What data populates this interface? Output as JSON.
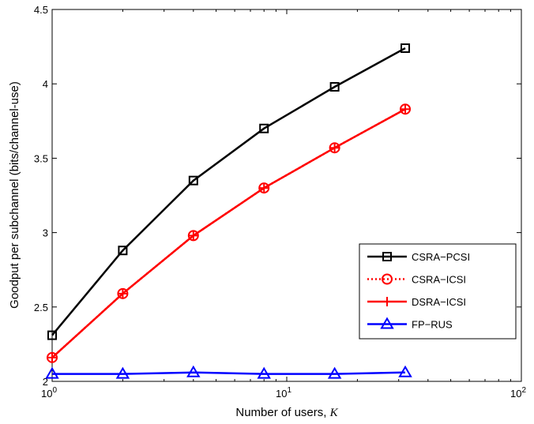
{
  "chart_data": {
    "type": "line",
    "xscale": "log",
    "xlim": [
      1,
      100
    ],
    "ylim": [
      2,
      4.5
    ],
    "xlabel": "Number of users, ",
    "xlabel_var": "K",
    "ylabel": "Goodput per subchannel (bits/channel-use)",
    "x_ticks": [
      1,
      10,
      100
    ],
    "x_tick_labels": [
      {
        "base": "10",
        "exp": "0"
      },
      {
        "base": "10",
        "exp": "1"
      },
      {
        "base": "10",
        "exp": "2"
      }
    ],
    "y_ticks": [
      2,
      2.5,
      3,
      3.5,
      4,
      4.5
    ],
    "y_tick_labels": [
      "2",
      "2.5",
      "3",
      "3.5",
      "4",
      "4.5"
    ],
    "grid": false,
    "legend_position": "lower-right",
    "x": [
      1,
      2,
      4,
      8,
      16,
      32
    ],
    "series": [
      {
        "name": "CSRA−PCSI",
        "color": "#000000",
        "marker": "square",
        "values": [
          2.31,
          2.88,
          3.35,
          3.7,
          3.98,
          4.24
        ]
      },
      {
        "name": "CSRA−ICSI",
        "color": "#ff0000",
        "marker": "circle",
        "line": "dotted",
        "values": [
          2.16,
          2.59,
          2.98,
          3.3,
          3.57,
          3.83
        ]
      },
      {
        "name": "DSRA−ICSI",
        "color": "#ff0000",
        "marker": "plus",
        "values": [
          2.16,
          2.59,
          2.98,
          3.3,
          3.57,
          3.83
        ]
      },
      {
        "name": "FP−RUS",
        "color": "#0000ff",
        "marker": "triangle",
        "values": [
          2.05,
          2.05,
          2.06,
          2.05,
          2.05,
          2.06
        ]
      }
    ]
  }
}
